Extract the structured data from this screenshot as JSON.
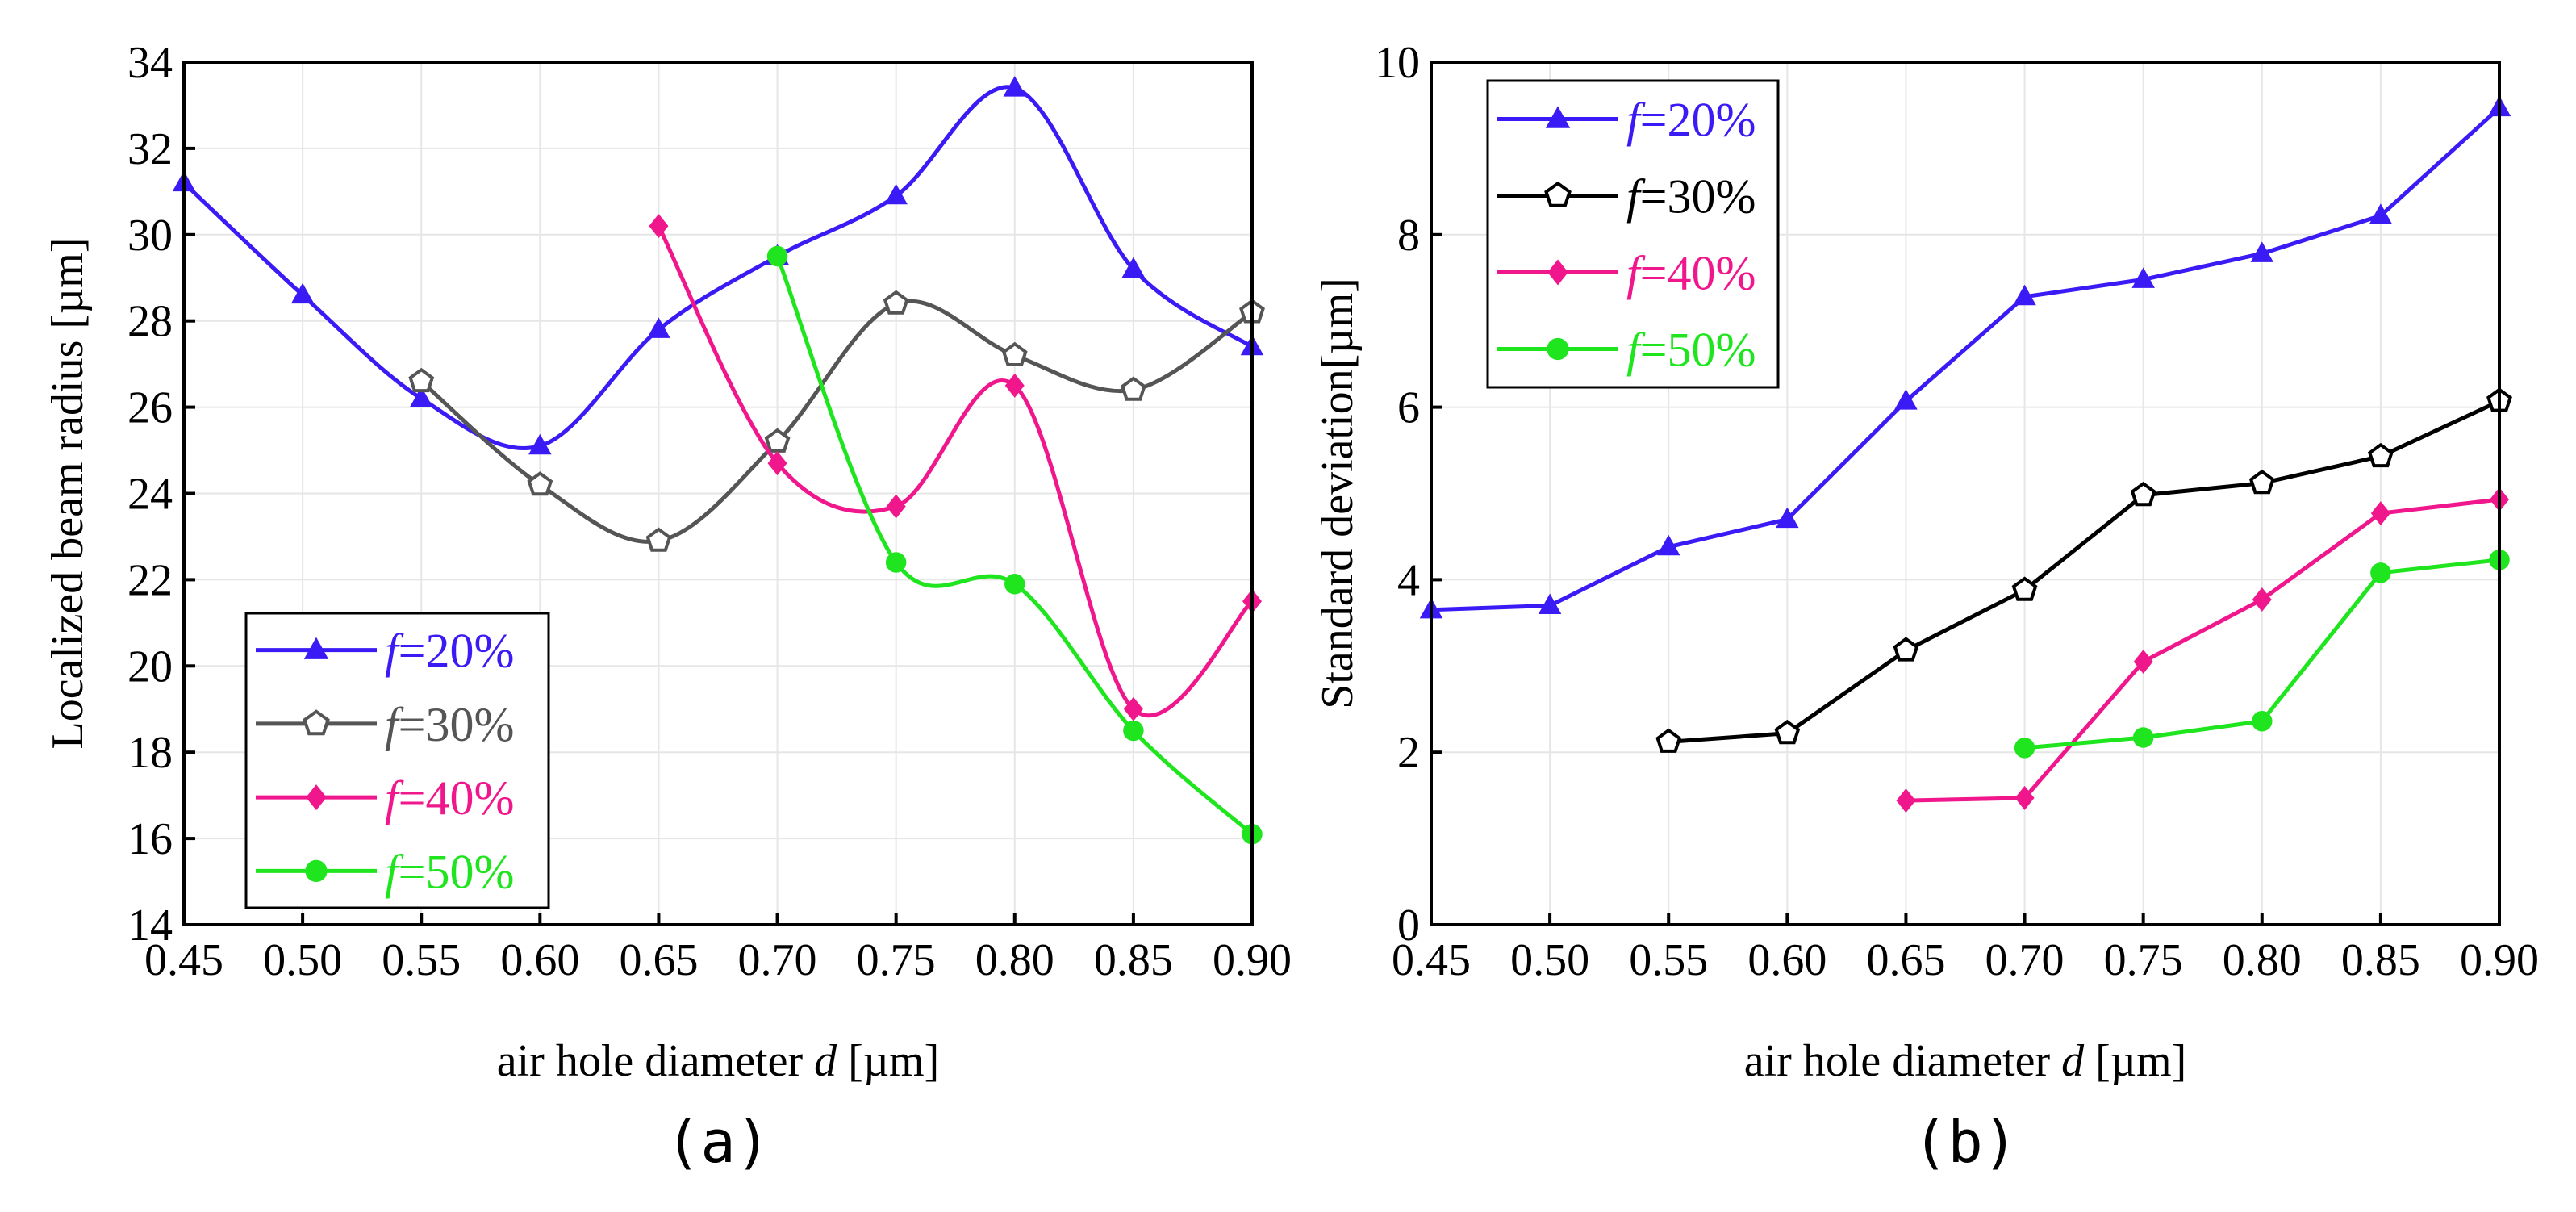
{
  "chart_data": [
    {
      "panel": "(a)",
      "type": "line",
      "xlabel_prefix": "air hole diameter ",
      "xlabel_var": "d",
      "xlabel_suffix": " [µm]",
      "ylabel": "Localized beam radius [µm]",
      "xlim": [
        0.45,
        0.9
      ],
      "ylim": [
        14,
        34
      ],
      "xticks": [
        "0.45",
        "0.50",
        "0.55",
        "0.60",
        "0.65",
        "0.70",
        "0.75",
        "0.80",
        "0.85",
        "0.90"
      ],
      "yticks": [
        "14",
        "16",
        "18",
        "20",
        "22",
        "24",
        "26",
        "28",
        "30",
        "32",
        "34"
      ],
      "legend_position": "bottom-left",
      "series": [
        {
          "name": "f=20%",
          "var": "f",
          "rest": "=20%",
          "color": "#3b1bf5",
          "marker": "triangle",
          "x": [
            0.45,
            0.5,
            0.55,
            0.6,
            0.65,
            0.7,
            0.75,
            0.8,
            0.85,
            0.9
          ],
          "y": [
            31.2,
            28.6,
            26.2,
            25.1,
            27.8,
            29.5,
            30.9,
            33.4,
            29.2,
            27.4
          ]
        },
        {
          "name": "f=30%",
          "var": "f",
          "rest": "=30%",
          "color": "#555555",
          "marker": "pentagon",
          "x": [
            0.55,
            0.6,
            0.65,
            0.7,
            0.75,
            0.8,
            0.85,
            0.9
          ],
          "y": [
            26.6,
            24.2,
            22.9,
            25.2,
            28.4,
            27.2,
            26.4,
            28.2
          ]
        },
        {
          "name": "f=40%",
          "var": "f",
          "rest": "=40%",
          "color": "#f0168c",
          "marker": "diamond",
          "x": [
            0.65,
            0.7,
            0.75,
            0.8,
            0.85,
            0.9
          ],
          "y": [
            30.2,
            24.7,
            23.7,
            26.5,
            19.0,
            21.5
          ]
        },
        {
          "name": "f=50%",
          "var": "f",
          "rest": "=50%",
          "color": "#1fe51f",
          "marker": "circle",
          "x": [
            0.7,
            0.75,
            0.8,
            0.85,
            0.9
          ],
          "y": [
            29.5,
            22.4,
            21.9,
            18.5,
            16.1
          ]
        }
      ]
    },
    {
      "panel": "(b)",
      "type": "line",
      "xlabel_prefix": "air hole diameter ",
      "xlabel_var": "d",
      "xlabel_suffix": " [µm]",
      "ylabel": "Standard deviation[µm]",
      "xlim": [
        0.45,
        0.9
      ],
      "ylim": [
        0,
        10
      ],
      "xticks": [
        "0.45",
        "0.50",
        "0.55",
        "0.60",
        "0.65",
        "0.70",
        "0.75",
        "0.80",
        "0.85",
        "0.90"
      ],
      "yticks": [
        "0",
        "2",
        "4",
        "6",
        "8",
        "10"
      ],
      "legend_position": "top-left",
      "series": [
        {
          "name": "f=20%",
          "var": "f",
          "rest": "=20%",
          "color": "#3b1bf5",
          "marker": "triangle",
          "x": [
            0.45,
            0.5,
            0.55,
            0.6,
            0.65,
            0.7,
            0.75,
            0.8,
            0.85,
            0.9
          ],
          "y": [
            3.65,
            3.7,
            4.38,
            4.7,
            6.07,
            7.28,
            7.48,
            7.78,
            8.22,
            9.47
          ]
        },
        {
          "name": "f=30%",
          "var": "f",
          "rest": "=30%",
          "color": "#000000",
          "marker": "pentagon",
          "x": [
            0.55,
            0.6,
            0.65,
            0.7,
            0.75,
            0.8,
            0.85,
            0.9
          ],
          "y": [
            2.12,
            2.22,
            3.18,
            3.88,
            4.98,
            5.12,
            5.43,
            6.07
          ]
        },
        {
          "name": "f=40%",
          "var": "f",
          "rest": "=40%",
          "color": "#f0168c",
          "marker": "diamond",
          "x": [
            0.65,
            0.7,
            0.75,
            0.8,
            0.85,
            0.9
          ],
          "y": [
            1.44,
            1.47,
            3.05,
            3.77,
            4.77,
            4.93
          ]
        },
        {
          "name": "f=50%",
          "var": "f",
          "rest": "=50%",
          "color": "#1fe51f",
          "marker": "circle",
          "x": [
            0.7,
            0.75,
            0.8,
            0.85,
            0.9
          ],
          "y": [
            2.05,
            2.17,
            2.36,
            4.08,
            4.23
          ]
        }
      ]
    }
  ]
}
